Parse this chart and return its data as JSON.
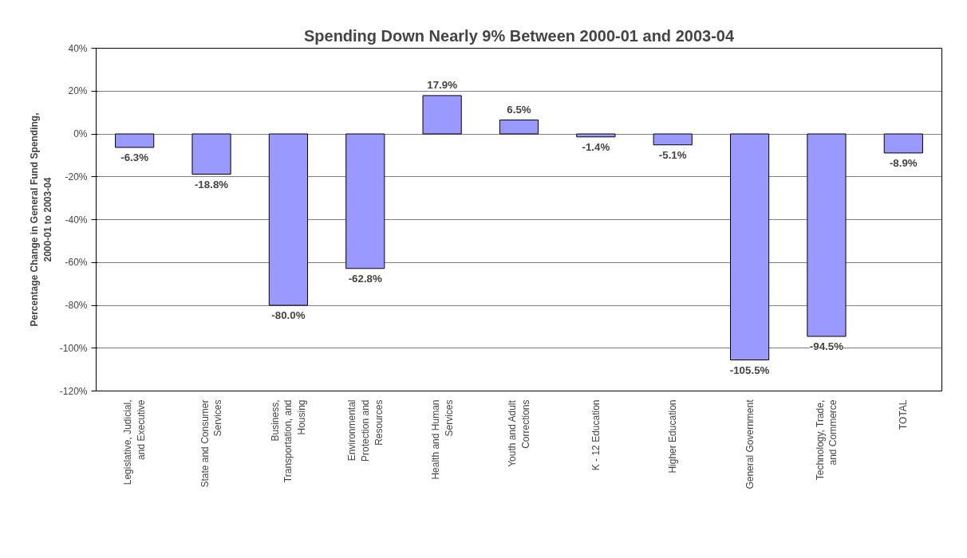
{
  "chart_data": {
    "type": "bar",
    "title": "Spending Down Nearly 9% Between 2000-01 and 2003-04",
    "ylabel": "Percentage Change in General Fund Spending,\n2000-01 to 2003-04",
    "categories": [
      "Legislative, Judicial,\nand Executive",
      "State and Consumer\nServices",
      "Business,\nTransportation, and\nHousing",
      "Environmental\nProtection and\nResources",
      "Health and Human\nServices",
      "Youth and Adult\nCorrections",
      "K - 12 Education",
      "Higher Education",
      "General Government",
      "Technology, Trade,\nand Commerce",
      "TOTAL"
    ],
    "values": [
      -6.3,
      -18.8,
      -80.0,
      -62.8,
      17.9,
      6.5,
      -1.4,
      -5.1,
      -105.5,
      -94.5,
      -8.9
    ],
    "value_labels": [
      "-6.3%",
      "-18.8%",
      "-80.0%",
      "-62.8%",
      "17.9%",
      "6.5%",
      "-1.4%",
      "-5.1%",
      "-105.5%",
      "-94.5%",
      "-8.9%"
    ],
    "color": "#9999ff",
    "ylim": [
      -120,
      40
    ],
    "yticks": [
      {
        "value": -120,
        "label": "-120%"
      },
      {
        "value": -100,
        "label": "-100%"
      },
      {
        "value": -80,
        "label": "-80%"
      },
      {
        "value": -60,
        "label": "-60%"
      },
      {
        "value": -40,
        "label": "-40%"
      },
      {
        "value": -20,
        "label": "-20%"
      },
      {
        "value": 0,
        "label": "0%"
      },
      {
        "value": 20,
        "label": "20%"
      },
      {
        "value": 40,
        "label": "40%"
      }
    ],
    "grid": "y"
  }
}
